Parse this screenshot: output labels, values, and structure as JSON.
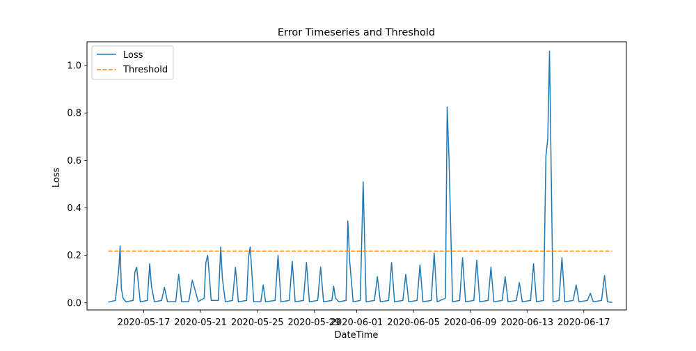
{
  "chart_data": {
    "type": "line",
    "title": "Error Timeseries and Threshold",
    "xlabel": "DateTime",
    "ylabel": "Loss",
    "xlim": [
      "2020-05-13T00:00",
      "2020-06-20T00:00"
    ],
    "ylim": [
      -0.03,
      1.1
    ],
    "x_ticks": [
      "2020-05-17",
      "2020-05-21",
      "2020-05-25",
      "2020-05-29",
      "2020-06-01",
      "2020-06-05",
      "2020-06-09",
      "2020-06-13",
      "2020-06-17"
    ],
    "y_ticks": [
      "0.0",
      "0.2",
      "0.4",
      "0.6",
      "0.8",
      "1.0"
    ],
    "grid": false,
    "legend": {
      "position": "top-left",
      "entries": [
        "Loss",
        "Threshold"
      ]
    },
    "series": [
      {
        "name": "Loss",
        "style": "solid",
        "color": "#1f77b4",
        "x": [
          "2020-05-14T12:00",
          "2020-05-15T00:00",
          "2020-05-15T06:00",
          "2020-05-15T08:00",
          "2020-05-15T10:00",
          "2020-05-15T13:00",
          "2020-05-15T18:00",
          "2020-05-16T06:00",
          "2020-05-16T09:00",
          "2020-05-16T12:00",
          "2020-05-16T18:00",
          "2020-05-17T06:00",
          "2020-05-17T10:00",
          "2020-05-17T13:00",
          "2020-05-17T18:00",
          "2020-05-18T06:00",
          "2020-05-18T11:00",
          "2020-05-18T16:00",
          "2020-05-19T06:00",
          "2020-05-19T11:00",
          "2020-05-19T16:00",
          "2020-05-20T04:00",
          "2020-05-20T10:00",
          "2020-05-20T14:00",
          "2020-05-20T20:00",
          "2020-05-21T06:00",
          "2020-05-21T09:00",
          "2020-05-21T12:00",
          "2020-05-21T18:00",
          "2020-05-22T06:00",
          "2020-05-22T10:00",
          "2020-05-22T13:00",
          "2020-05-22T18:00",
          "2020-05-23T06:00",
          "2020-05-23T11:00",
          "2020-05-23T16:00",
          "2020-05-24T06:00",
          "2020-05-24T09:00",
          "2020-05-24T12:00",
          "2020-05-24T18:00",
          "2020-05-25T06:00",
          "2020-05-25T10:00",
          "2020-05-25T14:00",
          "2020-05-26T06:00",
          "2020-05-26T11:00",
          "2020-05-26T16:00",
          "2020-05-27T06:00",
          "2020-05-27T11:00",
          "2020-05-27T16:00",
          "2020-05-28T06:00",
          "2020-05-28T11:00",
          "2020-05-28T16:00",
          "2020-05-29T06:00",
          "2020-05-29T11:00",
          "2020-05-29T16:00",
          "2020-05-30T06:00",
          "2020-05-30T09:00",
          "2020-05-30T12:00",
          "2020-05-30T18:00",
          "2020-05-31T06:00",
          "2020-05-31T09:00",
          "2020-05-31T12:00",
          "2020-05-31T18:00",
          "2020-06-01T06:00",
          "2020-06-01T11:00",
          "2020-06-01T16:00",
          "2020-06-02T06:00",
          "2020-06-02T11:00",
          "2020-06-02T16:00",
          "2020-06-03T06:00",
          "2020-06-03T11:00",
          "2020-06-03T16:00",
          "2020-06-04T06:00",
          "2020-06-04T11:00",
          "2020-06-04T16:00",
          "2020-06-05T06:00",
          "2020-06-05T11:00",
          "2020-06-05T16:00",
          "2020-06-06T06:00",
          "2020-06-06T11:00",
          "2020-06-06T16:00",
          "2020-06-07T06:00",
          "2020-06-07T09:00",
          "2020-06-07T12:00",
          "2020-06-07T18:00",
          "2020-06-08T06:00",
          "2020-06-08T11:00",
          "2020-06-08T16:00",
          "2020-06-09T06:00",
          "2020-06-09T11:00",
          "2020-06-09T16:00",
          "2020-06-10T06:00",
          "2020-06-10T11:00",
          "2020-06-10T16:00",
          "2020-06-11T06:00",
          "2020-06-11T11:00",
          "2020-06-11T16:00",
          "2020-06-12T06:00",
          "2020-06-12T11:00",
          "2020-06-12T16:00",
          "2020-06-13T06:00",
          "2020-06-13T11:00",
          "2020-06-13T16:00",
          "2020-06-14T04:00",
          "2020-06-14T08:00",
          "2020-06-14T11:00",
          "2020-06-14T14:00",
          "2020-06-14T20:00",
          "2020-06-15T06:00",
          "2020-06-15T11:00",
          "2020-06-15T16:00",
          "2020-06-16T06:00",
          "2020-06-16T11:00",
          "2020-06-16T16:00",
          "2020-06-17T06:00",
          "2020-06-17T11:00",
          "2020-06-17T16:00",
          "2020-06-18T06:00",
          "2020-06-18T11:00",
          "2020-06-18T16:00",
          "2020-06-19T00:00"
        ],
        "y": [
          0.003,
          0.01,
          0.15,
          0.24,
          0.06,
          0.02,
          0.004,
          0.01,
          0.13,
          0.15,
          0.004,
          0.01,
          0.165,
          0.07,
          0.004,
          0.01,
          0.065,
          0.004,
          0.005,
          0.12,
          0.004,
          0.005,
          0.095,
          0.06,
          0.005,
          0.02,
          0.17,
          0.2,
          0.01,
          0.01,
          0.235,
          0.1,
          0.004,
          0.01,
          0.15,
          0.004,
          0.01,
          0.19,
          0.235,
          0.004,
          0.005,
          0.075,
          0.004,
          0.01,
          0.2,
          0.004,
          0.01,
          0.175,
          0.004,
          0.01,
          0.17,
          0.004,
          0.01,
          0.15,
          0.004,
          0.01,
          0.07,
          0.02,
          0.004,
          0.01,
          0.345,
          0.18,
          0.004,
          0.01,
          0.51,
          0.004,
          0.01,
          0.11,
          0.004,
          0.01,
          0.17,
          0.004,
          0.01,
          0.12,
          0.004,
          0.01,
          0.16,
          0.004,
          0.01,
          0.21,
          0.004,
          0.02,
          0.825,
          0.61,
          0.004,
          0.01,
          0.19,
          0.004,
          0.01,
          0.18,
          0.004,
          0.01,
          0.15,
          0.004,
          0.01,
          0.11,
          0.004,
          0.01,
          0.085,
          0.004,
          0.01,
          0.165,
          0.004,
          0.01,
          0.62,
          0.69,
          1.06,
          0.004,
          0.01,
          0.19,
          0.004,
          0.01,
          0.075,
          0.004,
          0.01,
          0.04,
          0.004,
          0.01,
          0.115,
          0.004,
          0.002
        ]
      },
      {
        "name": "Threshold",
        "style": "dashed",
        "color": "#ff7f0e",
        "x": [
          "2020-05-14T12:00",
          "2020-06-19T00:00"
        ],
        "y": [
          0.218,
          0.218
        ]
      }
    ]
  }
}
